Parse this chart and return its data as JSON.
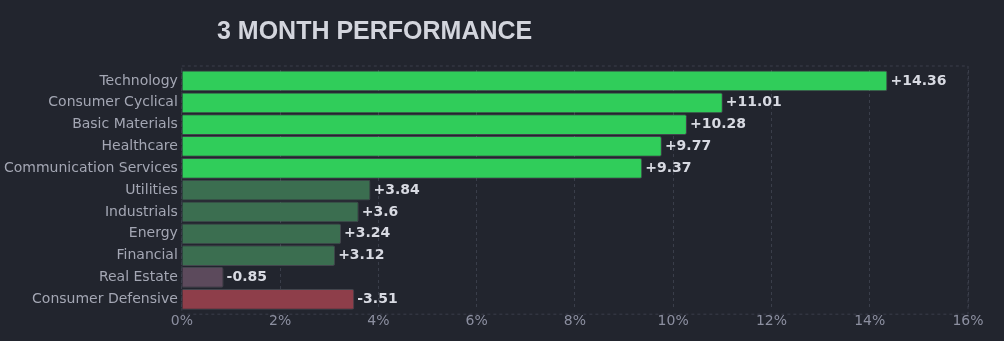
{
  "chart_data": {
    "type": "bar",
    "orientation": "horizontal",
    "title": "3 MONTH PERFORMANCE",
    "categories": [
      "Technology",
      "Consumer Cyclical",
      "Basic Materials",
      "Healthcare",
      "Communication Services",
      "Utilities",
      "Industrials",
      "Energy",
      "Financial",
      "Real Estate",
      "Consumer Defensive"
    ],
    "values": [
      14.36,
      11.01,
      10.28,
      9.77,
      9.37,
      3.84,
      3.6,
      3.24,
      3.12,
      -0.85,
      -3.51
    ],
    "base": [
      0,
      0,
      0,
      0,
      0,
      0,
      0,
      0,
      0,
      0.85,
      3.51
    ],
    "value_labels": [
      "+14.36",
      "+11.01",
      "+10.28",
      "+9.77",
      "+9.37",
      "+3.84",
      "+3.6",
      "+3.24",
      "+3.12",
      "-0.85",
      "-3.51"
    ],
    "colors": [
      "#30cd5a",
      "#30cd5a",
      "#30cd5a",
      "#30cd5a",
      "#30cd5a",
      "#3b6e50",
      "#3b6e50",
      "#3b6e50",
      "#3b6e50",
      "#5c4a5c",
      "#8e3e4a"
    ],
    "xlim": [
      0,
      16
    ],
    "xticks": [
      {
        "value": 0,
        "label": "0%"
      },
      {
        "value": 2,
        "label": "2%"
      },
      {
        "value": 4,
        "label": "4%"
      },
      {
        "value": 6,
        "label": "6%"
      },
      {
        "value": 8,
        "label": "8%"
      },
      {
        "value": 10,
        "label": "10%"
      },
      {
        "value": 12,
        "label": "12%"
      },
      {
        "value": 14,
        "label": "14%"
      },
      {
        "value": 16,
        "label": "16%"
      }
    ],
    "grid": "x",
    "legend": false
  }
}
